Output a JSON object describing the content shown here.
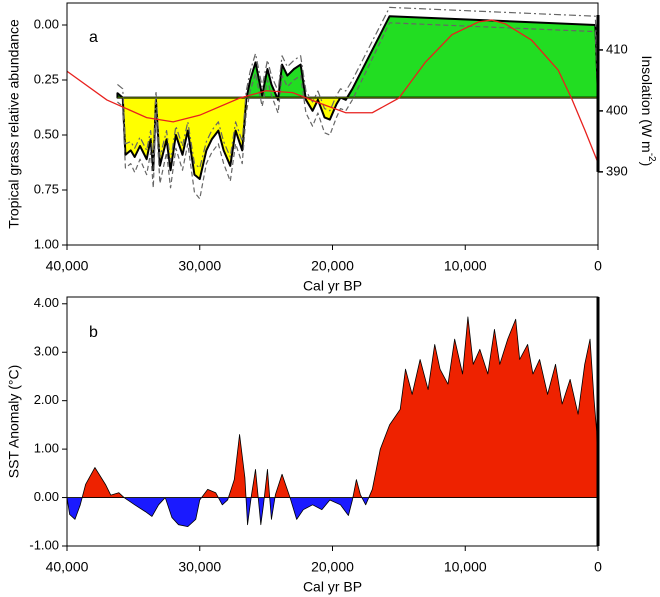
{
  "chart_data": [
    {
      "type": "area",
      "panel_label": "a",
      "ylabel": "Tropical grass relative abundance",
      "xlabel": "Cal yr BP",
      "y2label": [
        "Insolation (W m",
        "-2",
        ")"
      ],
      "xlim": [
        40000,
        0
      ],
      "xticks": [
        {
          "value": 40000,
          "label": "40,000"
        },
        {
          "value": 30000,
          "label": "30,000"
        },
        {
          "value": 20000,
          "label": "20,000"
        },
        {
          "value": 10000,
          "label": "10,000"
        },
        0
      ],
      "ylim": [
        1,
        -0.1
      ],
      "yticks": [
        {
          "value": 0,
          "label": "0.00"
        },
        {
          "value": 0.25,
          "label": "0.25"
        },
        {
          "value": 0.5,
          "label": "0.50"
        },
        {
          "value": 0.75,
          "label": "0.75"
        },
        {
          "value": 1,
          "label": "1.00"
        }
      ],
      "y2lim": [
        378,
        417.7
      ],
      "y2ticks": [
        390,
        400,
        410
      ],
      "baseline": 0.33,
      "baseline_color": "#4f6a00",
      "fill_above": "#22dd22",
      "fill_below": "#ffff00",
      "x": [
        36200,
        35800,
        35600,
        35200,
        34900,
        34500,
        34000,
        33700,
        33500,
        33300,
        33000,
        32500,
        32200,
        31800,
        31300,
        30900,
        30400,
        30000,
        29500,
        29100,
        28600,
        28200,
        27700,
        27300,
        26800,
        26500,
        26200,
        25800,
        25300,
        24900,
        24600,
        24100,
        23800,
        23400,
        22900,
        22400,
        22000,
        21500,
        21100,
        20600,
        20200,
        19700,
        19400,
        19000,
        18500,
        15700,
        200,
        0
      ],
      "series": [
        {
          "color": "#000000",
          "style": "solid",
          "values": [
            0.31,
            0.33,
            0.59,
            0.57,
            0.6,
            0.55,
            0.61,
            0.52,
            0.66,
            0.34,
            0.64,
            0.52,
            0.66,
            0.5,
            0.59,
            0.48,
            0.68,
            0.7,
            0.57,
            0.52,
            0.48,
            0.57,
            0.64,
            0.48,
            0.57,
            0.34,
            0.25,
            0.17,
            0.32,
            0.2,
            0.27,
            0.34,
            0.18,
            0.23,
            0.2,
            0.18,
            0.34,
            0.39,
            0.34,
            0.42,
            0.43,
            0.36,
            0.33,
            0.34,
            0.29,
            -0.04,
            0.0,
            0.33
          ]
        },
        {
          "color": "#666666",
          "style": "dashdot",
          "values": [
            0.27,
            0.29,
            0.54,
            0.53,
            0.56,
            0.51,
            0.57,
            0.48,
            0.62,
            0.3,
            0.6,
            0.48,
            0.62,
            0.46,
            0.55,
            0.44,
            0.63,
            0.65,
            0.53,
            0.48,
            0.44,
            0.53,
            0.6,
            0.44,
            0.53,
            0.3,
            0.21,
            0.13,
            0.28,
            0.16,
            0.23,
            0.3,
            0.14,
            0.19,
            0.16,
            0.14,
            0.3,
            0.35,
            0.3,
            0.38,
            0.39,
            0.32,
            0.29,
            0.3,
            0.25,
            -0.08,
            -0.04,
            0.3
          ]
        },
        {
          "color": "#666666",
          "style": "dashed",
          "values": [
            0.35,
            0.37,
            0.65,
            0.63,
            0.67,
            0.61,
            0.68,
            0.58,
            0.74,
            0.4,
            0.72,
            0.58,
            0.74,
            0.56,
            0.66,
            0.54,
            0.76,
            0.79,
            0.63,
            0.58,
            0.54,
            0.63,
            0.71,
            0.54,
            0.63,
            0.4,
            0.3,
            0.22,
            0.37,
            0.25,
            0.32,
            0.4,
            0.23,
            0.28,
            0.25,
            0.23,
            0.4,
            0.46,
            0.4,
            0.49,
            0.5,
            0.42,
            0.38,
            0.39,
            0.34,
            -0.01,
            0.03,
            0.36
          ]
        }
      ],
      "insolation": {
        "axis": "y2",
        "color": "#e8211e",
        "x": [
          40000,
          37000,
          34000,
          32000,
          30000,
          27000,
          25000,
          23000,
          21000,
          19000,
          17000,
          15000,
          13000,
          11000,
          9000,
          8000,
          7000,
          5000,
          3000,
          2000,
          1000,
          0
        ],
        "values": [
          406.5,
          401.8,
          398.9,
          398.2,
          399.3,
          402.1,
          403.3,
          403.0,
          401.3,
          399.7,
          399.7,
          402.1,
          408.0,
          412.5,
          414.6,
          414.9,
          414.3,
          411.6,
          406.7,
          402.1,
          396.9,
          391.5
        ]
      }
    },
    {
      "type": "area",
      "panel_label": "b",
      "ylabel": "SST Anomaly (°C)",
      "xlabel": "Cal yr BP",
      "xlim": [
        40000,
        0
      ],
      "xticks": [
        {
          "value": 40000,
          "label": "40,000"
        },
        {
          "value": 30000,
          "label": "30,000"
        },
        {
          "value": 20000,
          "label": "20,000"
        },
        {
          "value": 10000,
          "label": "10,000"
        },
        0
      ],
      "ylim": [
        -1,
        4.14
      ],
      "yticks": [
        {
          "value": -1,
          "label": "-1.00"
        },
        {
          "value": 0,
          "label": "0.00"
        },
        {
          "value": 1,
          "label": "1.00"
        },
        {
          "value": 2,
          "label": "2.00"
        },
        {
          "value": 3,
          "label": "3.00"
        },
        {
          "value": 4,
          "label": "4.00"
        }
      ],
      "baseline": 0,
      "fill_above": "#ee2200",
      "fill_below": "#1a1aff",
      "x": [
        40000,
        39800,
        39400,
        39000,
        38600,
        37900,
        37100,
        36700,
        36100,
        35700,
        34900,
        34100,
        33600,
        33100,
        32600,
        32100,
        31600,
        30900,
        30300,
        30000,
        29400,
        28800,
        28300,
        27900,
        27400,
        27000,
        26600,
        26400,
        26100,
        25800,
        25400,
        25200,
        24900,
        24600,
        24300,
        23800,
        23200,
        22700,
        22200,
        21500,
        20800,
        20200,
        19400,
        18800,
        18500,
        18200,
        17900,
        17500,
        17000,
        16400,
        15700,
        14900,
        14500,
        14000,
        13400,
        12800,
        12300,
        11900,
        11300,
        10800,
        10200,
        9800,
        9400,
        8900,
        8300,
        7800,
        7400,
        6800,
        6200,
        5900,
        5300,
        4900,
        4400,
        3800,
        3200,
        2700,
        2100,
        1500,
        1000,
        600,
        300,
        100,
        0
      ],
      "series": [
        {
          "color": "#000000",
          "style": "thin",
          "values": [
            0,
            -0.35,
            -0.45,
            -0.15,
            0.27,
            0.62,
            0.27,
            0.05,
            0.1,
            0,
            -0.15,
            -0.29,
            -0.39,
            -0.15,
            0,
            -0.41,
            -0.56,
            -0.6,
            -0.45,
            -0.05,
            0.17,
            0.1,
            -0.15,
            -0.05,
            0.37,
            1.3,
            0.41,
            -0.56,
            0.06,
            0.58,
            -0.56,
            -0.15,
            0.58,
            -0.45,
            0.06,
            0.48,
            0,
            -0.45,
            -0.25,
            -0.15,
            -0.25,
            -0.05,
            -0.15,
            -0.37,
            -0.05,
            0.37,
            0.06,
            -0.15,
            0.17,
            1.0,
            1.5,
            1.82,
            2.65,
            2.13,
            2.85,
            2.23,
            3.16,
            2.65,
            2.34,
            3.27,
            2.55,
            3.73,
            2.75,
            3.06,
            2.55,
            3.47,
            2.75,
            3.27,
            3.68,
            2.85,
            3.16,
            2.55,
            2.85,
            2.13,
            2.75,
            1.93,
            2.44,
            1.72,
            2.75,
            3.27,
            2.03,
            1.37,
            0
          ]
        }
      ]
    }
  ]
}
